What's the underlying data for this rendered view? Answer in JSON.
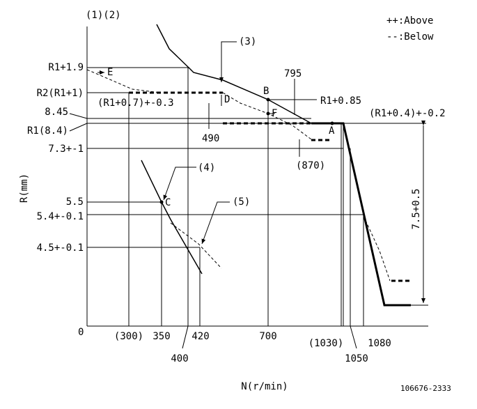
{
  "header": {
    "figure": "(1)(2)",
    "code": "106676-2333"
  },
  "legend": {
    "above": "++:Above",
    "below": "--:Below"
  },
  "axes": {
    "y_title": "R(mm)",
    "x_title": "N(r/min)",
    "origin": "0"
  },
  "y_labels": [
    "R1+1.9",
    "R2(R1+1)",
    "8.45",
    "R1(8.4)",
    "7.3+-1",
    "5.5",
    "5.4+-0.1",
    "4.5+-0.1"
  ],
  "x_labels": [
    "(300)",
    "350",
    "420",
    "700",
    "(1030)",
    "1080",
    "400",
    "1050"
  ],
  "annotations": [
    "(3)",
    "E",
    "795",
    "B",
    "R1+0.85",
    "(R1+0.7)+-0.3",
    "D",
    "F",
    "(R1+0.4)+-0.2",
    "A",
    "490",
    "(870)",
    "(4)",
    "C",
    "(5)",
    "7.5+0.5"
  ]
}
